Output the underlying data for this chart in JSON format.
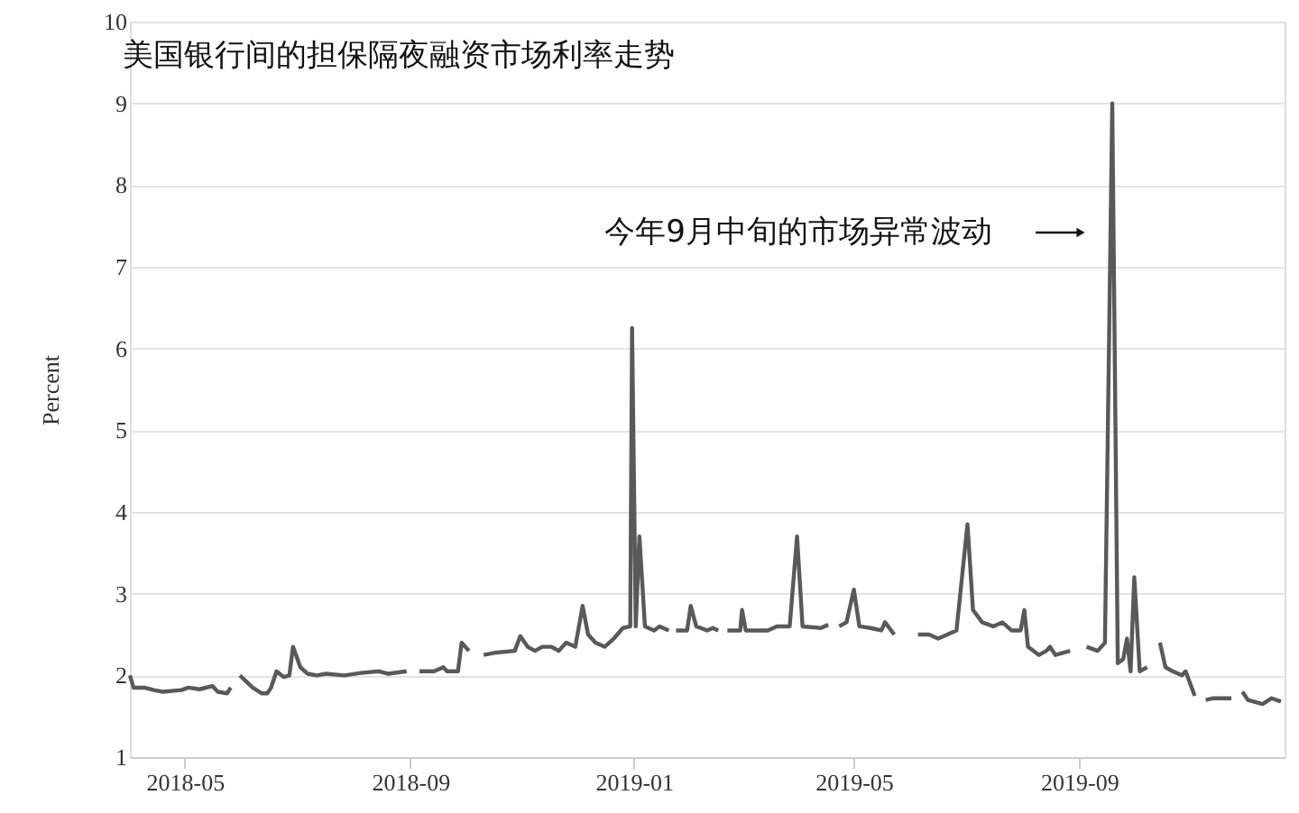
{
  "chart_data": {
    "type": "line",
    "title": "美国银行间的担保隔夜融资市场利率走势",
    "ylabel": "Percent",
    "x": [
      "2018-04-01",
      "2018-04-03",
      "2018-04-09",
      "2018-04-14",
      "2018-04-19",
      "2018-04-29",
      "2018-05-03",
      "2018-05-09",
      "2018-05-16",
      "2018-05-19",
      "2018-05-24",
      "2018-05-26",
      "2018-05-28",
      "2018-05-31",
      "2018-06-07",
      "2018-06-12",
      "2018-06-15",
      "2018-06-17",
      "2018-06-20",
      "2018-06-24",
      "2018-06-27",
      "2018-06-29",
      "2018-07-03",
      "2018-07-07",
      "2018-07-12",
      "2018-07-17",
      "2018-07-27",
      "2018-08-05",
      "2018-08-15",
      "2018-08-20",
      "2018-08-30",
      "2018-09-03",
      "2018-09-06",
      "2018-09-14",
      "2018-09-19",
      "2018-09-21",
      "2018-09-27",
      "2018-09-29",
      "2018-10-03",
      "2018-10-07",
      "2018-10-11",
      "2018-10-18",
      "2018-10-28",
      "2018-10-31",
      "2018-11-04",
      "2018-11-08",
      "2018-11-12",
      "2018-11-17",
      "2018-11-21",
      "2018-11-25",
      "2018-11-30",
      "2018-12-04",
      "2018-12-07",
      "2018-12-11",
      "2018-12-16",
      "2018-12-21",
      "2018-12-26",
      "2018-12-30",
      "2018-12-31",
      "2019-01-02",
      "2019-01-04",
      "2019-01-07",
      "2019-01-12",
      "2019-01-15",
      "2019-01-20",
      "2019-01-22",
      "2019-01-24",
      "2019-01-30",
      "2019-02-01",
      "2019-02-04",
      "2019-02-10",
      "2019-02-13",
      "2019-02-16",
      "2019-02-19",
      "2019-02-21",
      "2019-02-28",
      "2019-03-01",
      "2019-03-03",
      "2019-03-15",
      "2019-03-20",
      "2019-03-27",
      "2019-03-31",
      "2019-04-03",
      "2019-04-13",
      "2019-04-17",
      "2019-04-20",
      "2019-04-23",
      "2019-04-27",
      "2019-05-01",
      "2019-05-04",
      "2019-05-10",
      "2019-05-16",
      "2019-05-18",
      "2019-05-23",
      "2019-05-30",
      "2019-06-05",
      "2019-06-11",
      "2019-06-16",
      "2019-06-21",
      "2019-06-26",
      "2019-07-02",
      "2019-07-05",
      "2019-07-10",
      "2019-07-16",
      "2019-07-21",
      "2019-07-26",
      "2019-07-31",
      "2019-08-02",
      "2019-08-04",
      "2019-08-10",
      "2019-08-14",
      "2019-08-16",
      "2019-08-19",
      "2019-08-27",
      "2019-09-01",
      "2019-09-05",
      "2019-09-11",
      "2019-09-15",
      "2019-09-19",
      "2019-09-22",
      "2019-09-25",
      "2019-09-27",
      "2019-09-29",
      "2019-10-01",
      "2019-10-04",
      "2019-10-08",
      "2019-10-12",
      "2019-10-15",
      "2019-10-18",
      "2019-10-22",
      "2019-10-27",
      "2019-10-29",
      "2019-11-03",
      "2019-11-06",
      "2019-11-09",
      "2019-11-13",
      "2019-11-21",
      "2019-11-23",
      "2019-11-26",
      "2019-11-29",
      "2019-12-02",
      "2019-12-10",
      "2019-12-15",
      "2019-12-20"
    ],
    "series": [
      {
        "color": "#595959",
        "values": [
          2.0,
          1.85,
          1.85,
          1.82,
          1.8,
          1.82,
          1.85,
          1.83,
          1.87,
          1.8,
          1.78,
          1.85,
          null,
          2.0,
          1.85,
          1.78,
          1.78,
          1.85,
          2.05,
          1.98,
          2.0,
          2.35,
          2.1,
          2.02,
          2.0,
          2.02,
          2.0,
          2.03,
          2.05,
          2.02,
          2.05,
          null,
          2.05,
          2.05,
          2.1,
          2.05,
          2.05,
          2.4,
          2.3,
          null,
          2.25,
          2.28,
          2.3,
          2.48,
          2.35,
          2.3,
          2.35,
          2.35,
          2.3,
          2.4,
          2.35,
          2.85,
          2.5,
          2.4,
          2.35,
          2.45,
          2.58,
          2.6,
          6.25,
          2.6,
          3.7,
          2.6,
          2.55,
          2.6,
          2.55,
          null,
          2.55,
          2.55,
          2.85,
          2.6,
          2.55,
          2.58,
          2.55,
          null,
          2.55,
          2.55,
          2.8,
          2.55,
          2.55,
          2.6,
          2.6,
          3.7,
          2.6,
          2.58,
          2.62,
          null,
          2.6,
          2.65,
          3.05,
          2.6,
          2.58,
          2.55,
          2.65,
          2.5,
          null,
          2.5,
          2.5,
          2.45,
          2.5,
          2.55,
          3.85,
          2.8,
          2.65,
          2.6,
          2.65,
          2.55,
          2.55,
          2.8,
          2.35,
          2.25,
          2.3,
          2.35,
          2.25,
          2.3,
          null,
          2.35,
          2.3,
          2.4,
          9.0,
          2.15,
          2.2,
          2.45,
          2.05,
          3.2,
          2.05,
          2.1,
          null,
          2.4,
          2.1,
          2.05,
          2.0,
          2.05,
          1.75,
          null,
          1.7,
          1.72,
          1.72,
          1.72,
          null,
          1.8,
          1.7,
          1.65,
          1.72,
          1.68
        ]
      }
    ],
    "xlim": [
      "2018-04-01",
      "2019-12-22"
    ],
    "xticks": [
      "2018-05",
      "2018-09",
      "2019-01",
      "2019-05",
      "2019-09"
    ],
    "ylim": [
      1,
      10
    ],
    "yticks": [
      1,
      2,
      3,
      4,
      5,
      6,
      7,
      8,
      9,
      10
    ],
    "grid": "y",
    "marker": "none",
    "line_style": "solid",
    "annotations": [
      "今年9月中旬的市场异常波动"
    ]
  }
}
